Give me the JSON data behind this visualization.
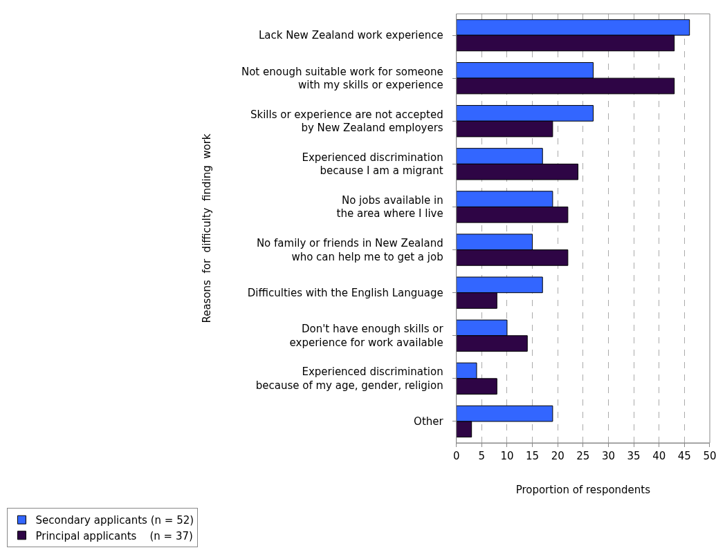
{
  "chart_data": {
    "type": "bar",
    "orientation": "horizontal",
    "xlabel": "Proportion of respondents",
    "ylabel": "Reasons  for  difficulty  finding  work",
    "categories": [
      "Lack New Zealand work experience",
      "Not enough suitable work for someone\nwith my skills or experience",
      "Skills or experience are not accepted\nby New Zealand employers",
      "Experienced discrimination\nbecause I am a migrant",
      "No jobs available in\nthe area where I live",
      "No family or friends in New Zealand\nwho can help me to get a job",
      "Difficulties with the English Language",
      "Don't have enough skills or\nexperience for work available",
      "Experienced discrimination\nbecause of my age, gender, religion",
      "Other"
    ],
    "series": [
      {
        "name": "Secondary applicants (n = 52)",
        "color": "#3366ff",
        "values": [
          46,
          27,
          27,
          17,
          19,
          15,
          17,
          10,
          4,
          19
        ]
      },
      {
        "name": "Principal applicants    (n = 37)",
        "color": "#2e0545",
        "values": [
          43,
          43,
          19,
          24,
          22,
          22,
          8,
          14,
          8,
          3
        ]
      }
    ],
    "xlim": [
      0,
      50
    ],
    "xticks": [
      0,
      5,
      10,
      15,
      20,
      25,
      30,
      35,
      40,
      45,
      50
    ],
    "grid": "x",
    "legend": "bottom left"
  }
}
